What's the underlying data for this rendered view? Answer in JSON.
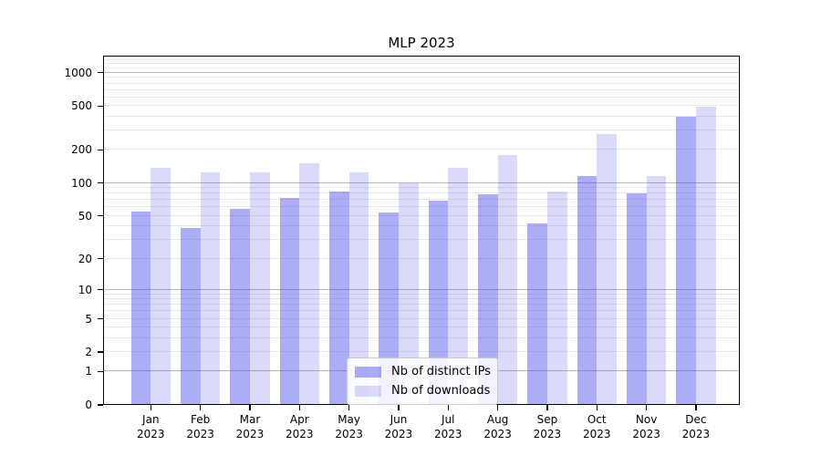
{
  "chart_data": {
    "type": "bar",
    "title": "MLP 2023",
    "categories": [
      "Jan",
      "Feb",
      "Mar",
      "Apr",
      "May",
      "Jun",
      "Jul",
      "Aug",
      "Sep",
      "Oct",
      "Nov",
      "Dec"
    ],
    "x_year": "2023",
    "series": [
      {
        "key": "distinct-ips",
        "name": "Nb of distinct IPs",
        "color": "rgba(60,60,235,0.42)",
        "values": [
          55,
          39,
          58,
          73,
          84,
          54,
          69,
          79,
          43,
          115,
          81,
          398
        ]
      },
      {
        "key": "downloads",
        "name": "Nb of downloads",
        "color": "rgba(60,60,235,0.19)",
        "values": [
          138,
          125,
          125,
          152,
          125,
          100,
          137,
          180,
          84,
          280,
          115,
          495
        ]
      }
    ],
    "yscale": "log1p",
    "ylim": [
      0,
      1430
    ],
    "y_ticks": [
      0,
      1,
      2,
      5,
      10,
      20,
      50,
      100,
      200,
      500,
      1000
    ],
    "grid": {
      "major_values": [
        1,
        10,
        100,
        1000
      ],
      "minor_values": [
        2,
        3,
        4,
        5,
        6,
        7,
        8,
        9,
        20,
        30,
        40,
        50,
        60,
        70,
        80,
        90,
        200,
        300,
        400,
        500,
        600,
        700,
        800,
        900,
        1100,
        1200,
        1300,
        1400
      ],
      "major_color": "#b8b8b8",
      "minor_color": "#e9e9e9"
    },
    "legend": {
      "position": "lower center"
    },
    "axis_color": "#000000",
    "background": "#ffffff"
  }
}
